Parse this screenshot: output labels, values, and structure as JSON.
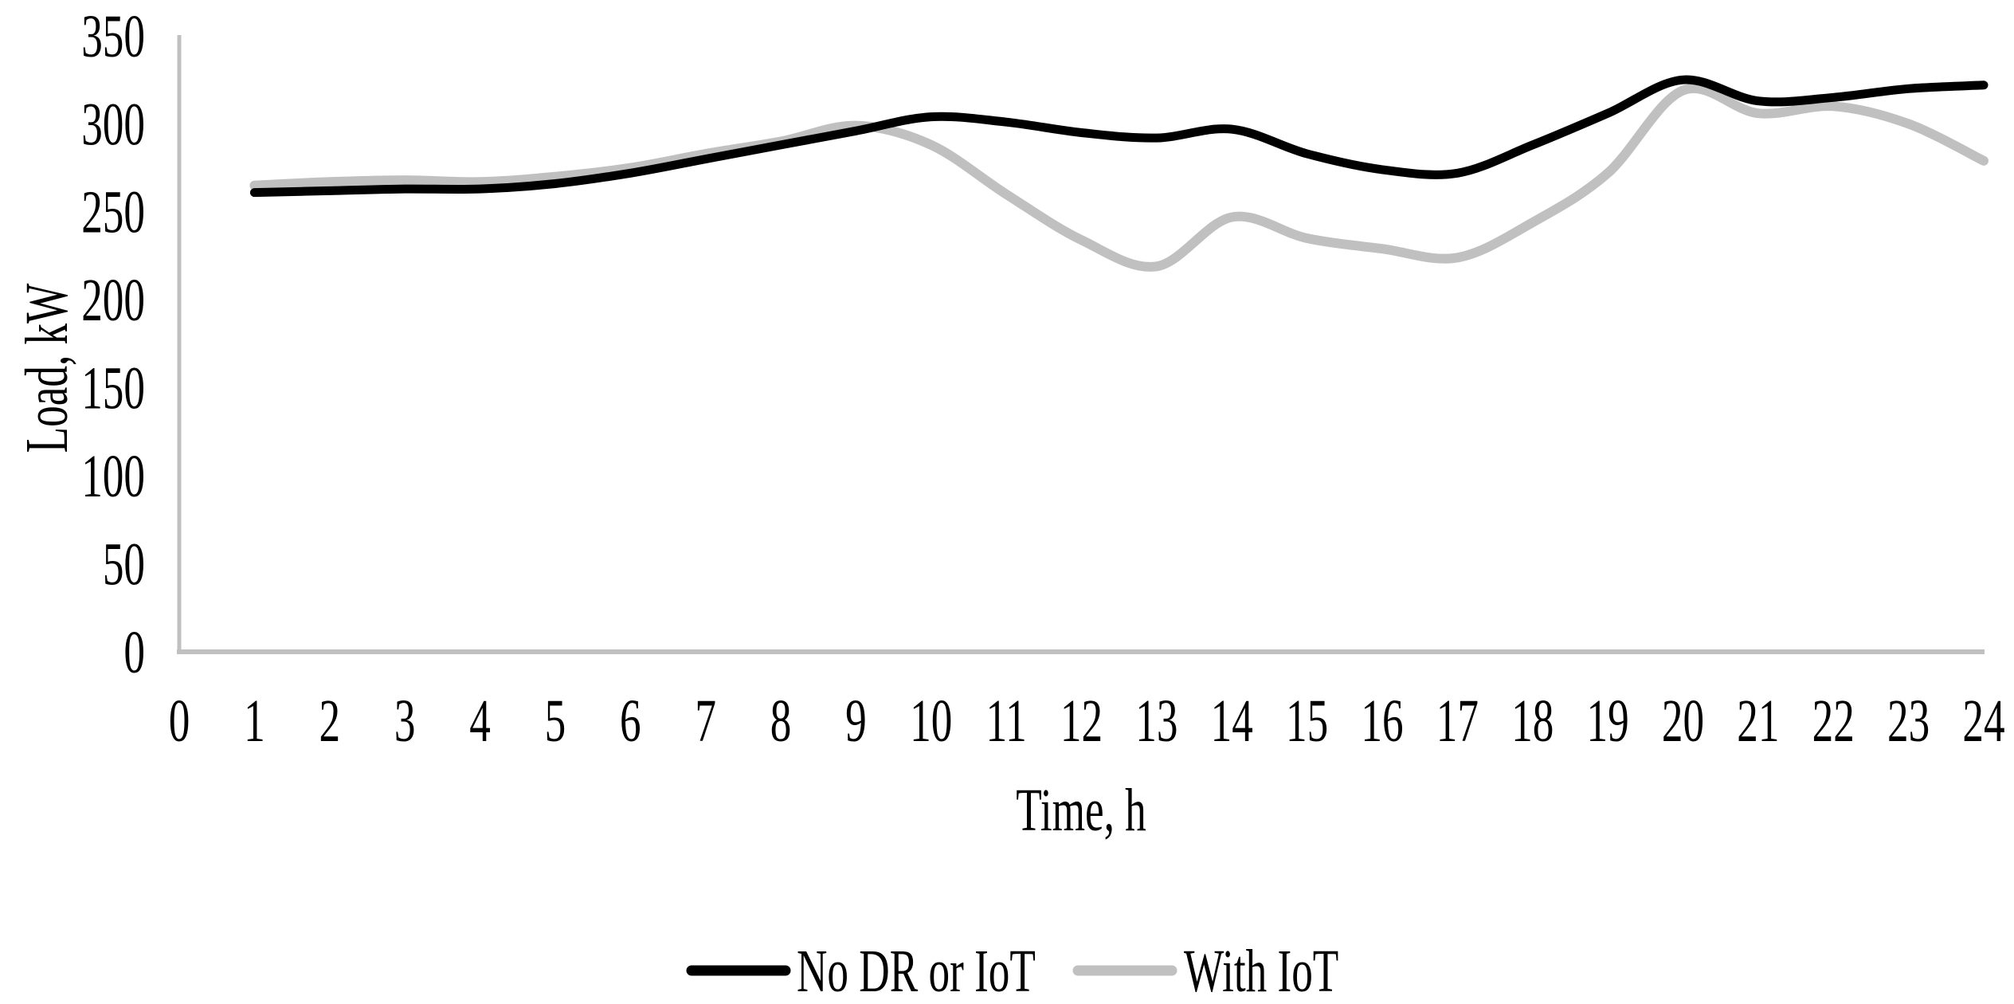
{
  "chart_data": {
    "type": "line",
    "title": "",
    "xlabel": "Time, h",
    "ylabel": "Load, kW",
    "xlim": [
      0,
      24
    ],
    "ylim": [
      0,
      350
    ],
    "x_ticks": [
      0,
      1,
      2,
      3,
      4,
      5,
      6,
      7,
      8,
      9,
      10,
      11,
      12,
      13,
      14,
      15,
      16,
      17,
      18,
      19,
      20,
      21,
      22,
      23,
      24
    ],
    "y_ticks": [
      0,
      50,
      100,
      150,
      200,
      250,
      300,
      350
    ],
    "grid": false,
    "legend_position": "bottom-center",
    "axis_color": "#c0c0c0",
    "x": [
      1,
      2,
      3,
      4,
      5,
      6,
      7,
      8,
      9,
      10,
      11,
      12,
      13,
      14,
      15,
      16,
      17,
      18,
      19,
      20,
      21,
      22,
      23,
      24
    ],
    "series": [
      {
        "name": "No DR or IoT",
        "color": "#000000",
        "stroke_width": 11,
        "values": [
          261,
          262,
          263,
          263,
          266,
          272,
          280,
          288,
          296,
          304,
          301,
          295,
          292,
          297,
          283,
          274,
          272,
          288,
          306,
          325,
          313,
          315,
          320,
          322
        ]
      },
      {
        "name": "With IoT",
        "color": "#c0c0c0",
        "stroke_width": 12,
        "values": [
          265,
          267,
          268,
          267,
          270,
          275,
          283,
          290,
          299,
          288,
          260,
          234,
          219,
          247,
          235,
          229,
          224,
          244,
          272,
          319,
          306,
          310,
          300,
          279
        ]
      }
    ]
  }
}
